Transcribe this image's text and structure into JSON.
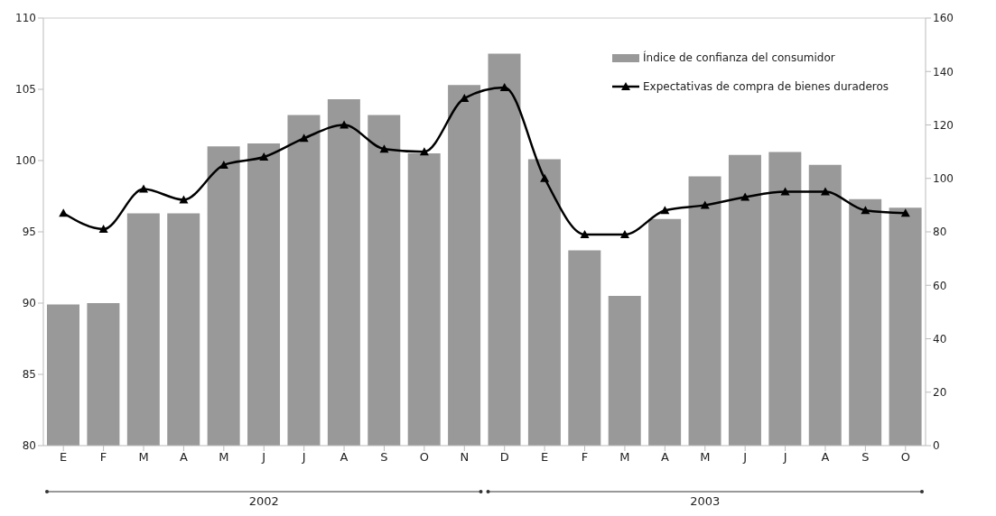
{
  "chart_data": {
    "type": "bar",
    "categories": [
      "E",
      "F",
      "M",
      "A",
      "M",
      "J",
      "J",
      "A",
      "S",
      "O",
      "N",
      "D",
      "E",
      "F",
      "M",
      "A",
      "M",
      "J",
      "J",
      "A",
      "S",
      "O"
    ],
    "series": [
      {
        "name": "Índice de confianza del consumidor",
        "color": "#999999",
        "values": [
          89.9,
          90.0,
          96.3,
          96.3,
          101.0,
          101.2,
          103.2,
          104.3,
          103.2,
          100.5,
          105.3,
          107.5,
          100.1,
          93.7,
          90.5,
          95.9,
          98.9,
          100.4,
          100.6,
          99.7,
          97.3,
          96.7
        ]
      },
      {
        "name": "Expectativas de compra de bienes duraderos",
        "type": "line",
        "axis": "y2",
        "color": "#000000",
        "marker": "triangle",
        "values": [
          87,
          81,
          96,
          92,
          105,
          108,
          115,
          120,
          111,
          110,
          130,
          134,
          100,
          79,
          79,
          88,
          90,
          93,
          95,
          95,
          88,
          87
        ]
      }
    ],
    "ylim": [
      80,
      110
    ],
    "yticks": [
      80,
      85,
      90,
      95,
      100,
      105,
      110
    ],
    "y2lim": [
      0,
      160
    ],
    "y2ticks": [
      0,
      20,
      40,
      60,
      80,
      100,
      120,
      140,
      160
    ],
    "grid": false,
    "legend": "top right",
    "annotations": [
      "2002",
      "2003"
    ]
  }
}
